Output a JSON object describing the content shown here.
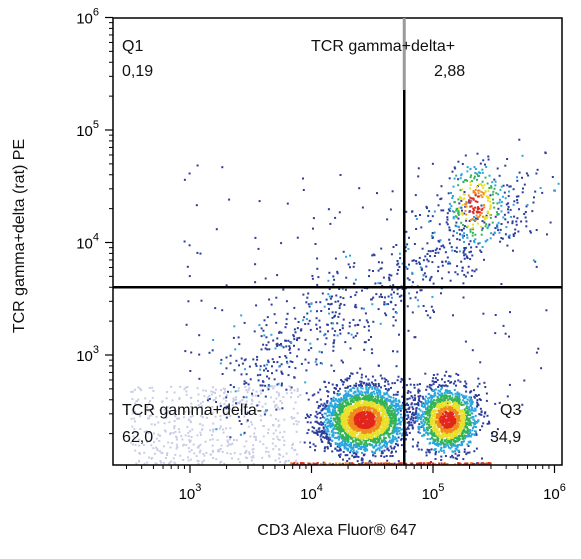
{
  "chart_data": {
    "type": "scatter",
    "plot_style": "flow cytometry pseudocolor density dot plot",
    "xlabel": "CD3 Alexa Fluor® 647",
    "ylabel": "TCR gamma+delta (rat) PE",
    "x_scale": "log",
    "y_scale": "log",
    "x_ticks": [
      {
        "base": "10",
        "exp": "3",
        "value": 1000
      },
      {
        "base": "10",
        "exp": "4",
        "value": 10000
      },
      {
        "base": "10",
        "exp": "5",
        "value": 100000
      },
      {
        "base": "10",
        "exp": "6",
        "value": 1000000
      }
    ],
    "y_ticks": [
      {
        "base": "10",
        "exp": "3",
        "value": 1000
      },
      {
        "base": "10",
        "exp": "4",
        "value": 10000
      },
      {
        "base": "10",
        "exp": "5",
        "value": 100000
      },
      {
        "base": "10",
        "exp": "6",
        "value": 1000000
      }
    ],
    "gate": {
      "x": 58000,
      "y": 4000
    },
    "quadrants": [
      {
        "label": "Q1",
        "value": "0,19",
        "position": "top-left"
      },
      {
        "label": "TCR gamma+delta+",
        "value": "2,88",
        "position": "top-right"
      },
      {
        "label": "TCR gamma+delta-",
        "value": "62,0",
        "position": "bottom-left"
      },
      {
        "label": "Q3",
        "value": "34,9",
        "position": "bottom-right"
      }
    ],
    "populations": [
      {
        "x_center": 27000,
        "y_center": 270,
        "density": "high"
      },
      {
        "x_center": 130000,
        "y_center": 270,
        "density": "high"
      },
      {
        "x_center": 220000,
        "y_center": 22000,
        "density": "low"
      }
    ],
    "density_colors": [
      "#c8cde6",
      "#2d3d9c",
      "#2aa6dc",
      "#33b356",
      "#e8e02a",
      "#f08a1c",
      "#e2261c"
    ]
  }
}
